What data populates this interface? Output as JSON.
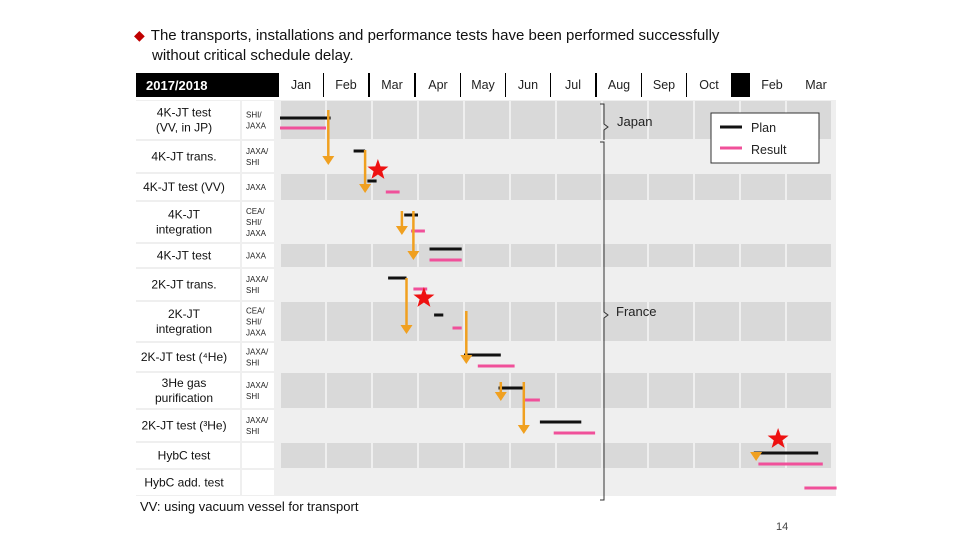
{
  "headline": {
    "line1": "The transports, installations and performance tests have been performed successfully",
    "line2": "without critical schedule delay."
  },
  "chart_data": {
    "type": "gantt",
    "period_label": "2017/2018",
    "months": [
      "Jan",
      "Feb",
      "Mar",
      "Apr",
      "May",
      "Jun",
      "Jul",
      "Aug",
      "Sep",
      "Oct",
      "Feb",
      "Mar"
    ],
    "rows": [
      {
        "task": [
          "4K-JT test",
          "(VV, in JP)"
        ],
        "resp": [
          "SHI/",
          "JAXA"
        ],
        "plan": [
          0.0,
          1.1
        ],
        "result": [
          0.0,
          1.0
        ]
      },
      {
        "task": [
          "4K-JT trans."
        ],
        "resp": [
          "JAXA/",
          "SHI"
        ],
        "plan": [
          1.6,
          1.85
        ],
        "result": null
      },
      {
        "task": [
          "4K-JT test (VV)"
        ],
        "resp": [
          "JAXA"
        ],
        "plan": [
          1.9,
          2.1
        ],
        "result": [
          2.3,
          2.6
        ]
      },
      {
        "task": [
          "4K-JT",
          "integration"
        ],
        "resp": [
          "CEA/",
          "SHI/",
          "JAXA"
        ],
        "plan": [
          2.7,
          3.0
        ],
        "result": [
          2.85,
          3.15
        ]
      },
      {
        "task": [
          "4K-JT test"
        ],
        "resp": [
          "JAXA"
        ],
        "plan": [
          3.25,
          3.95
        ],
        "result": [
          3.25,
          3.95
        ]
      },
      {
        "task": [
          "2K-JT trans."
        ],
        "resp": [
          "JAXA/",
          "SHI"
        ],
        "plan": [
          2.35,
          2.75
        ],
        "result": [
          2.9,
          3.2
        ]
      },
      {
        "task": [
          "2K-JT",
          "integration"
        ],
        "resp": [
          "CEA/",
          "SHI/",
          "JAXA"
        ],
        "plan": [
          3.35,
          3.55
        ],
        "result": [
          3.75,
          3.95
        ]
      },
      {
        "task": [
          "2K-JT test (⁴He)"
        ],
        "resp": [
          "JAXA/",
          "SHI"
        ],
        "plan": [
          4.0,
          4.8
        ],
        "result": [
          4.3,
          5.1
        ]
      },
      {
        "task": [
          "3He gas",
          "purification"
        ],
        "resp": [
          "JAXA/",
          "SHI"
        ],
        "plan": [
          4.75,
          5.3
        ],
        "result": [
          5.3,
          5.65
        ]
      },
      {
        "task": [
          "2K-JT test (³He)"
        ],
        "resp": [
          "JAXA/",
          "SHI"
        ],
        "plan": [
          5.65,
          6.55
        ],
        "result": [
          5.95,
          6.85
        ]
      },
      {
        "task": [
          "HybC test"
        ],
        "resp": [],
        "plan": [
          10.3,
          11.7
        ],
        "result": [
          10.4,
          11.8
        ]
      },
      {
        "task": [
          "HybC add. test"
        ],
        "resp": [],
        "plan": null,
        "result": [
          11.4,
          12.1
        ]
      }
    ],
    "transitions": [
      {
        "from_row": 0,
        "to_row": 1,
        "month": 1.05
      },
      {
        "from_row": 1,
        "to_row": 2,
        "month": 1.85
      },
      {
        "from_row": 3,
        "to_row": 3,
        "month": 2.65
      },
      {
        "from_row": 3,
        "to_row": 4,
        "month": 2.9
      },
      {
        "from_row": 5,
        "to_row": 6,
        "month": 2.75
      },
      {
        "from_row": 6,
        "to_row": 7,
        "month": 4.05
      },
      {
        "from_row": 8,
        "to_row": 8,
        "month": 4.8
      },
      {
        "from_row": 8,
        "to_row": 9,
        "month": 5.3
      },
      {
        "from_row": 10,
        "to_row": 10,
        "month": 10.35
      }
    ],
    "milestones": [
      {
        "row": 2,
        "month": 1.65
      },
      {
        "row": 6,
        "month": 2.65
      },
      {
        "row": 10,
        "month": 10.35
      }
    ],
    "legend": {
      "plan": "Plan",
      "result": "Result"
    },
    "locations": {
      "top": "Japan",
      "bottom": "France"
    }
  },
  "colors": {
    "plan": "#111111",
    "result": "#f0509a",
    "arrow": "#f0a020",
    "star": "#ee1111",
    "header": "#000000",
    "rowA": "#d9d9d9",
    "rowB": "#efefef"
  },
  "footnote": "VV: using vacuum vessel for transport",
  "page_number": "14"
}
